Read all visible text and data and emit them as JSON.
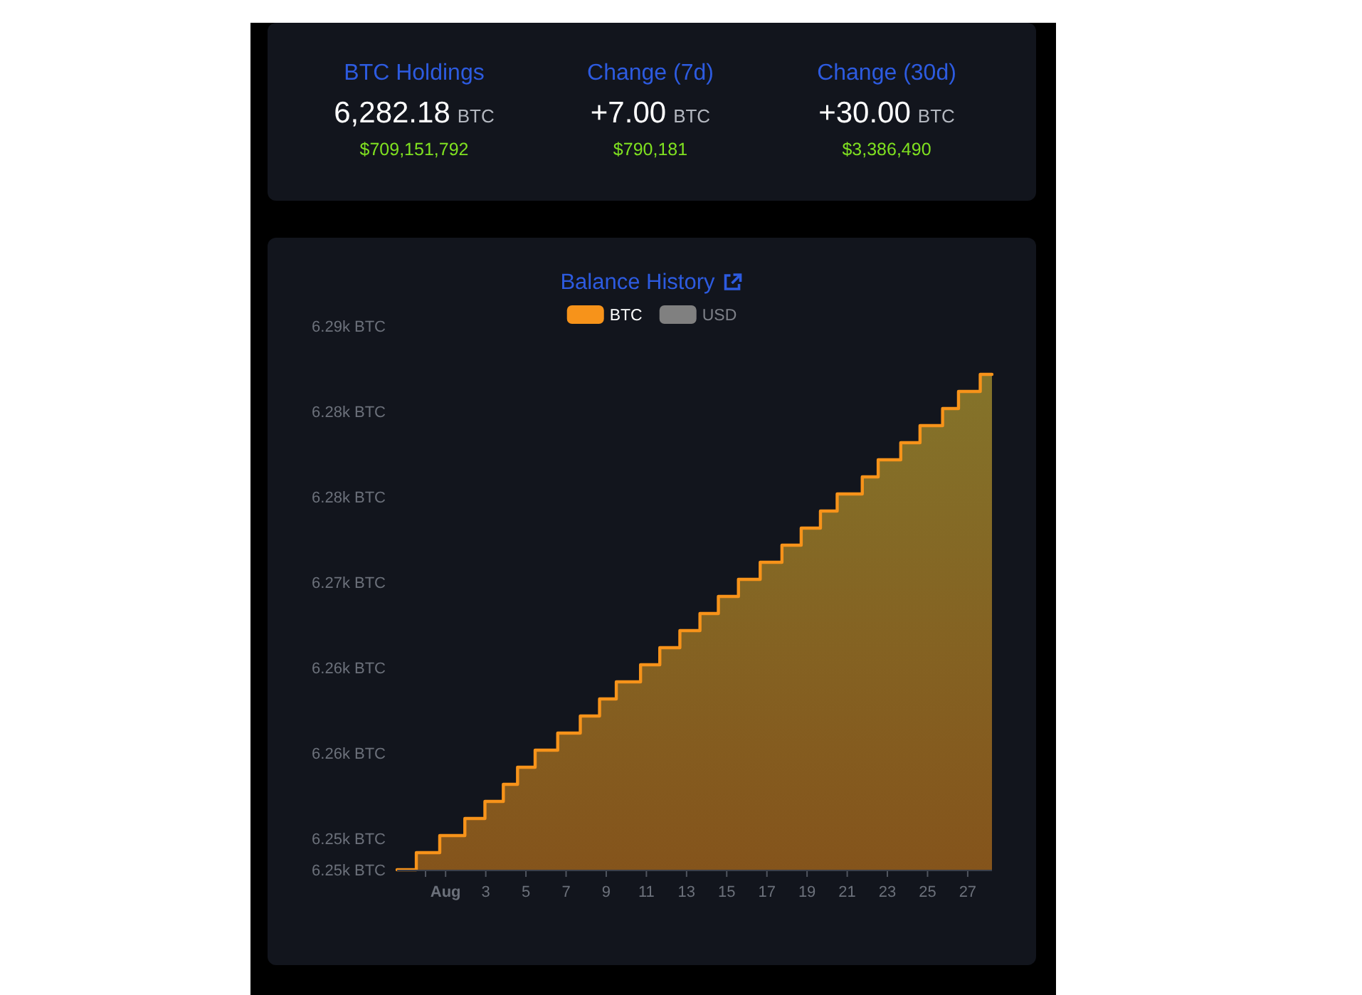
{
  "chart_data": [
    {
      "type": "other",
      "categories": [
        "BTC Holdings",
        "Change (7d)",
        "Change (30d)"
      ],
      "value_labels": [
        "6,282.18 BTC",
        "+7.00 BTC",
        "+30.00 BTC"
      ],
      "annotations": [
        "$709,151,792",
        "$790,181",
        "$3,386,490"
      ]
    },
    {
      "type": "area",
      "title": "Balance History",
      "legend": "top",
      "x": [
        "--07-29T14:00",
        "--07-30T13:00",
        "--07-30T13:00",
        "--07-31T17:00",
        "--07-31T17:00",
        "--08-01T23:00",
        "--08-01T23:00",
        "--08-02T23:00",
        "--08-02T23:00",
        "--08-03T21:00",
        "--08-03T21:00",
        "--08-04T14:00",
        "--08-04T14:00",
        "--08-05T11:00",
        "--08-05T11:00",
        "--08-06T14:00",
        "--08-06T14:00",
        "--08-07T17:00",
        "--08-07T17:00",
        "--08-08T16:00",
        "--08-08T16:00",
        "--08-09T12:00",
        "--08-09T12:00",
        "--08-10T17:00",
        "--08-10T17:00",
        "--08-11T16:00",
        "--08-11T16:00",
        "--08-12T16:00",
        "--08-12T16:00",
        "--08-13T16:00",
        "--08-13T16:00",
        "--08-14T14:00",
        "--08-14T14:00",
        "--08-15T14:00",
        "--08-15T14:00",
        "--08-16T16:00",
        "--08-16T16:00",
        "--08-17T18:00",
        "--08-17T18:00",
        "--08-18T17:00",
        "--08-18T17:00",
        "--08-19T16:00",
        "--08-19T16:00",
        "--08-20T12:00",
        "--08-20T12:00",
        "--08-21T18:00",
        "--08-21T18:00",
        "--08-22T13:00",
        "--08-22T13:00",
        "--08-23T16:00",
        "--08-23T16:00",
        "--08-24T15:00",
        "--08-24T15:00",
        "--08-25T18:00",
        "--08-25T18:00",
        "--08-26T13:00",
        "--08-26T13:00",
        "--08-27T15:00",
        "--08-27T15:00",
        "--08-28T05:00"
      ],
      "series": [
        {
          "name": "BTC",
          "color": "#f7931a",
          "values": [
            6253.18,
            6253.18,
            6254.18,
            6254.18,
            6255.18,
            6255.18,
            6256.18,
            6256.18,
            6257.18,
            6257.18,
            6258.18,
            6258.18,
            6259.18,
            6259.18,
            6260.18,
            6260.18,
            6261.18,
            6261.18,
            6262.18,
            6262.18,
            6263.18,
            6263.18,
            6264.18,
            6264.18,
            6265.18,
            6265.18,
            6266.18,
            6266.18,
            6267.18,
            6267.18,
            6268.18,
            6268.18,
            6269.18,
            6269.18,
            6270.18,
            6270.18,
            6271.18,
            6271.18,
            6272.18,
            6272.18,
            6273.18,
            6273.18,
            6274.18,
            6274.18,
            6275.18,
            6275.18,
            6276.18,
            6276.18,
            6277.18,
            6277.18,
            6278.18,
            6278.18,
            6279.18,
            6279.18,
            6280.18,
            6280.18,
            6281.18,
            6281.18,
            6282.18,
            6282.18
          ]
        },
        {
          "name": "USD",
          "color": "#808080",
          "values": [
            null,
            null,
            null,
            null,
            null,
            null,
            null,
            null,
            null,
            null,
            null,
            null,
            null,
            null,
            null,
            null,
            null,
            null,
            null,
            null,
            null,
            null,
            null,
            null,
            null,
            null,
            null,
            null,
            null,
            null,
            null,
            null,
            null,
            null,
            null,
            null,
            null,
            null,
            null,
            null,
            null,
            null,
            null,
            null,
            null,
            null,
            null,
            null,
            null,
            null,
            null,
            null,
            null,
            null,
            null,
            null,
            null,
            null,
            null,
            null
          ]
        }
      ],
      "xlim": [
        "--07-29T14:00",
        "--08-28T05:00"
      ],
      "xticks": [
        {
          "value": "--07-31",
          "label": null
        },
        {
          "value": "--08-01",
          "label": "Aug"
        },
        {
          "value": "--08-03",
          "label": "3"
        },
        {
          "value": "--08-05",
          "label": "5"
        },
        {
          "value": "--08-07",
          "label": "7"
        },
        {
          "value": "--08-09",
          "label": "9"
        },
        {
          "value": "--08-11",
          "label": "11"
        },
        {
          "value": "--08-13",
          "label": "13"
        },
        {
          "value": "--08-15",
          "label": "15"
        },
        {
          "value": "--08-17",
          "label": "17"
        },
        {
          "value": "--08-19",
          "label": "19"
        },
        {
          "value": "--08-21",
          "label": "21"
        },
        {
          "value": "--08-23",
          "label": "23"
        },
        {
          "value": "--08-25",
          "label": "25"
        },
        {
          "value": "--08-27",
          "label": "27"
        }
      ],
      "ylim": [
        6253.18,
        6285
      ],
      "yticks": [
        {
          "value": 6253.18,
          "label": "6.25k BTC"
        },
        {
          "value": 6255,
          "label": "6.25k BTC"
        },
        {
          "value": 6260,
          "label": "6.26k BTC"
        },
        {
          "value": 6265,
          "label": "6.26k BTC"
        },
        {
          "value": 6270,
          "label": "6.27k BTC"
        },
        {
          "value": 6275,
          "label": "6.28k BTC"
        },
        {
          "value": 6280,
          "label": "6.28k BTC"
        },
        {
          "value": 6285,
          "label": "6.29k BTC"
        }
      ]
    }
  ]
}
